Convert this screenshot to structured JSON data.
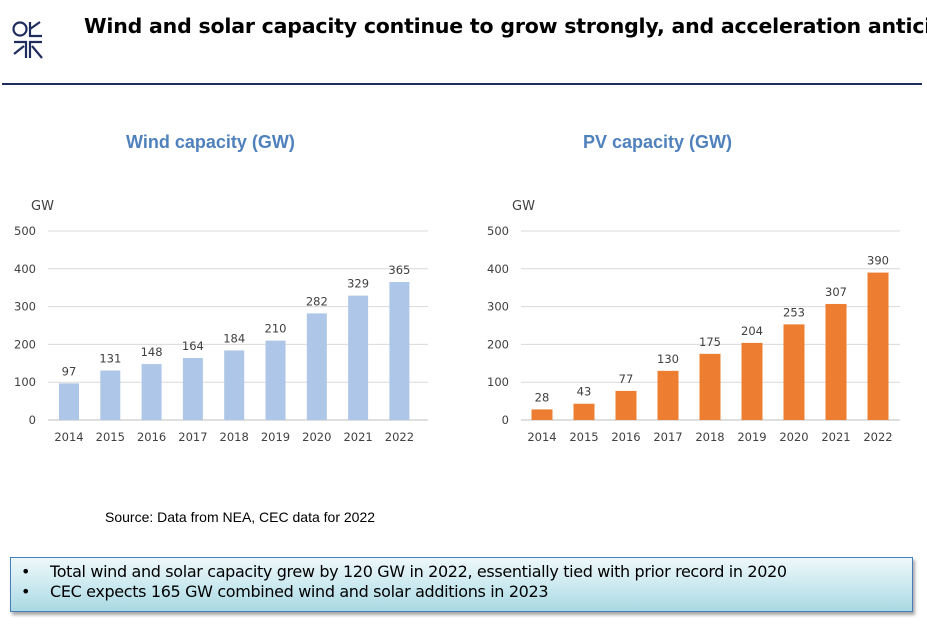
{
  "header": {
    "title": "Wind and solar capacity continue to grow strongly, and acceleration anticipated",
    "logo_icon": "arrows-logo-icon"
  },
  "colors": {
    "header_rule": "#1f2d5c",
    "chart_title": "#4f81bd",
    "wind_bar": "#aec6e8",
    "pv_bar": "#ed7d31",
    "gridline": "#d9d9d9",
    "callout_border": "#4a7ebb"
  },
  "chart_data": [
    {
      "type": "bar",
      "title": "Wind capacity (GW)",
      "ylabel": "GW",
      "xlabel": "",
      "categories": [
        "2014",
        "2015",
        "2016",
        "2017",
        "2018",
        "2019",
        "2020",
        "2021",
        "2022"
      ],
      "values": [
        97,
        131,
        148,
        164,
        184,
        210,
        282,
        329,
        365
      ],
      "ylim": [
        0,
        500
      ],
      "yticks": [
        0,
        100,
        200,
        300,
        400,
        500
      ],
      "grid": true,
      "data_labels": true,
      "legend": "none"
    },
    {
      "type": "bar",
      "title": "PV capacity (GW)",
      "ylabel": "GW",
      "xlabel": "",
      "categories": [
        "2014",
        "2015",
        "2016",
        "2017",
        "2018",
        "2019",
        "2020",
        "2021",
        "2022"
      ],
      "values": [
        28,
        43,
        77,
        130,
        175,
        204,
        253,
        307,
        390
      ],
      "ylim": [
        0,
        500
      ],
      "yticks": [
        0,
        100,
        200,
        300,
        400,
        500
      ],
      "grid": true,
      "data_labels": true,
      "legend": "none"
    }
  ],
  "source": "Source: Data from NEA, CEC data for 2022",
  "callout": {
    "bullet": "•",
    "items": [
      "Total wind and solar capacity grew by 120 GW in 2022, essentially tied with prior record in 2020",
      "CEC expects 165 GW combined wind and solar additions in 2023"
    ]
  }
}
